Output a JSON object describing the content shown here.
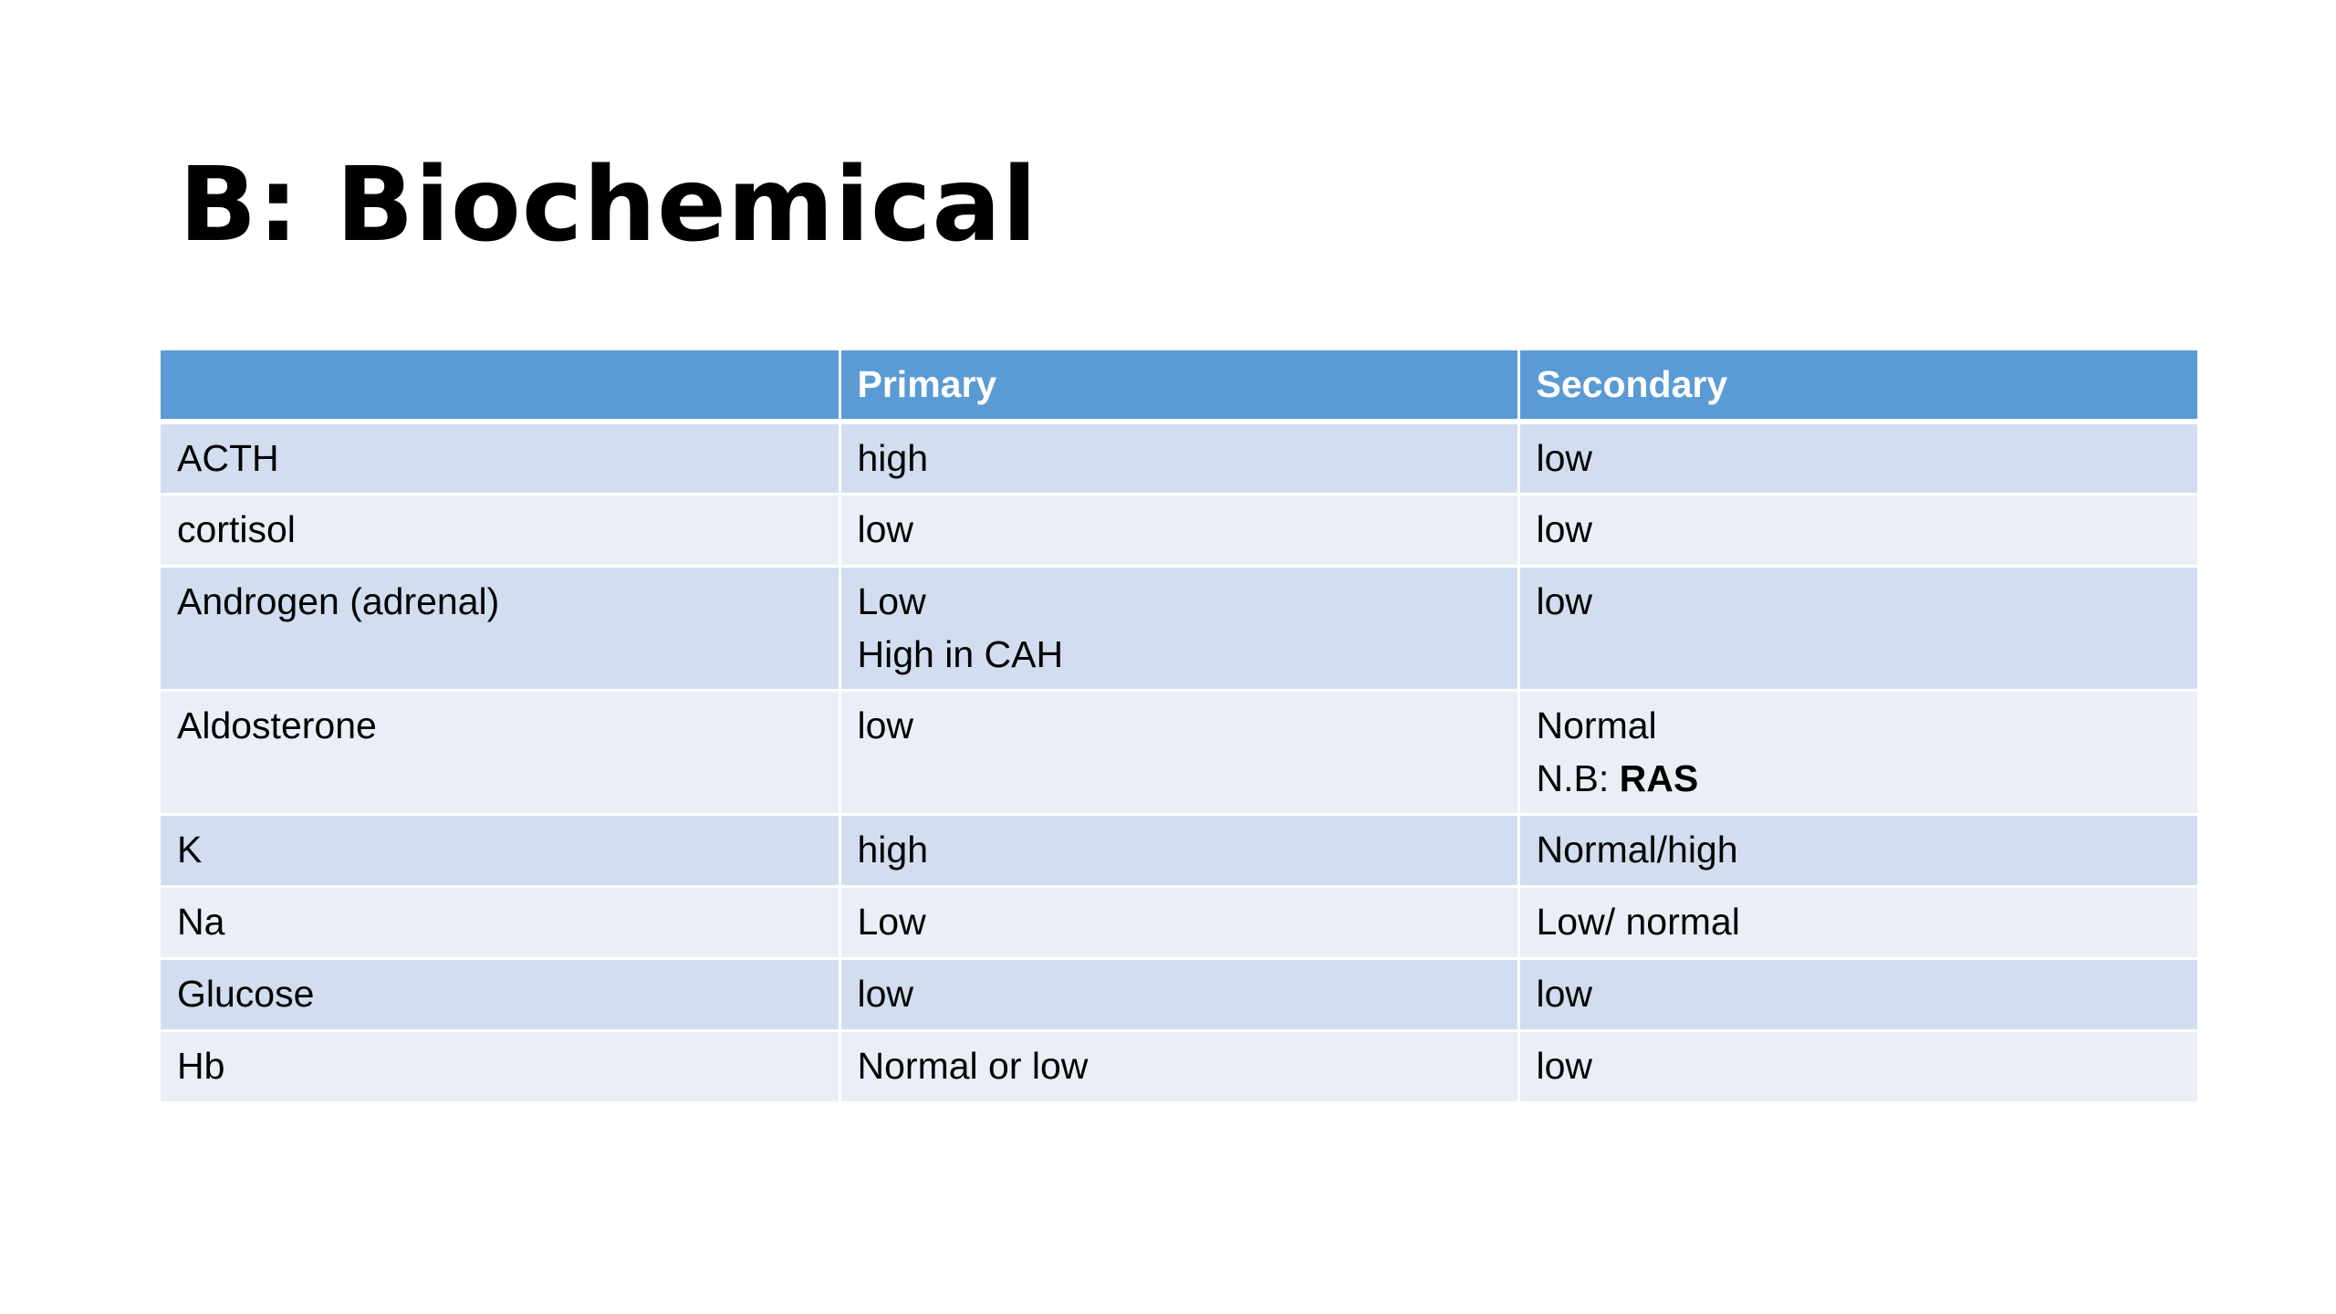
{
  "title": "B: Biochemical",
  "table": {
    "headers": [
      "",
      "Primary",
      "Secondary"
    ],
    "rows": [
      {
        "label": "ACTH",
        "primary": [
          "high"
        ],
        "secondary": [
          "low"
        ]
      },
      {
        "label": "cortisol",
        "primary": [
          "low"
        ],
        "secondary": [
          "low"
        ]
      },
      {
        "label": "Androgen (adrenal)",
        "primary": [
          "Low",
          "High in CAH"
        ],
        "secondary": [
          "low"
        ]
      },
      {
        "label": "Aldosterone",
        "primary": [
          "low"
        ],
        "secondary": [
          "Normal"
        ],
        "secondary_note_prefix": "N.B: ",
        "secondary_note_bold": "RAS"
      },
      {
        "label": "K",
        "primary": [
          "high"
        ],
        "secondary": [
          "Normal/high"
        ]
      },
      {
        "label": "Na",
        "primary": [
          "Low"
        ],
        "secondary": [
          "Low/ normal"
        ]
      },
      {
        "label": "Glucose",
        "primary": [
          "low"
        ],
        "secondary": [
          "low"
        ]
      },
      {
        "label": "Hb",
        "primary": [
          "Normal or low"
        ],
        "secondary": [
          "low"
        ]
      }
    ]
  }
}
